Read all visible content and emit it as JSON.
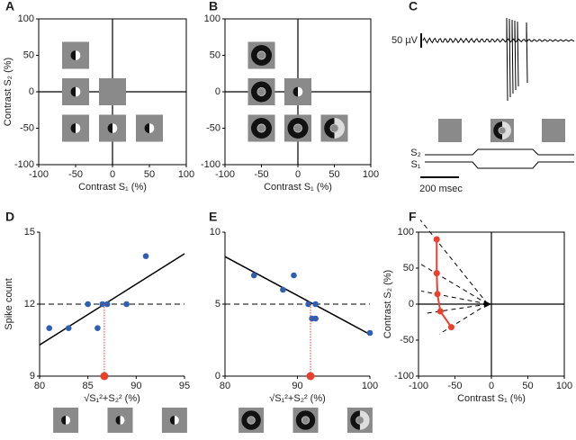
{
  "chart_data": [
    {
      "type": "icon",
      "panel": "A",
      "xlabel": "Contrast S₁ (%)",
      "ylabel": "Contrast S₂ (%)",
      "x": [
        -50,
        -50,
        0,
        -50,
        0,
        50
      ],
      "y": [
        50,
        0,
        0,
        -50,
        -50,
        -50
      ],
      "xlim": [
        -100,
        100
      ],
      "ylim": [
        -100,
        100
      ],
      "xticks": [
        -100,
        -50,
        0,
        50,
        100
      ],
      "yticks": [
        -100,
        -50,
        0,
        50,
        100
      ]
    },
    {
      "type": "icon",
      "panel": "B",
      "xlabel": "Contrast S₁ (%)",
      "x": [
        -50,
        -50,
        0,
        -50,
        0,
        50
      ],
      "y": [
        50,
        0,
        0,
        -50,
        -50,
        -50
      ],
      "xlim": [
        -100,
        100
      ],
      "ylim": [
        -100,
        100
      ],
      "xticks": [
        -100,
        -50,
        0,
        50,
        100
      ],
      "yticks": [
        -100,
        -50,
        0,
        50,
        100
      ]
    },
    {
      "type": "trace",
      "panel": "C",
      "scale": "50 µV",
      "s2": "S₂",
      "s1": "S₁",
      "time": "200 msec"
    },
    {
      "type": "scatter",
      "panel": "D",
      "xlabel": "√S₁²+S₂² (%)",
      "ylabel": "Spike count",
      "x": [
        81,
        83,
        85,
        86,
        86.5,
        87,
        89,
        91
      ],
      "y": [
        11,
        11,
        12,
        11,
        12,
        12,
        12,
        14
      ],
      "color": "#2e5fb3",
      "fit": {
        "x": [
          80,
          95
        ],
        "y": [
          10.3,
          14.1
        ]
      },
      "hline": 12,
      "crossing": 86.7,
      "crossing_color": "#e8412c",
      "xlim": [
        80,
        95
      ],
      "ylim": [
        9,
        15
      ],
      "xticks": [
        80,
        85,
        90,
        95
      ],
      "yticks": [
        9,
        12,
        15
      ]
    },
    {
      "type": "scatter",
      "panel": "E",
      "xlabel": "√S₁²+S₂² (%)",
      "x": [
        84,
        88,
        89.5,
        91.5,
        92,
        92.5,
        92.5,
        100
      ],
      "y": [
        7,
        6,
        7,
        5,
        4,
        5,
        4,
        3
      ],
      "color": "#2e5fb3",
      "fit": {
        "x": [
          80,
          100
        ],
        "y": [
          8.3,
          2.9
        ]
      },
      "hline": 5,
      "crossing": 91.8,
      "crossing_color": "#e8412c",
      "xlim": [
        80,
        100
      ],
      "ylim": [
        0,
        10
      ],
      "xticks": [
        80,
        90,
        100
      ],
      "yticks": [
        0,
        5,
        10
      ]
    },
    {
      "type": "line",
      "panel": "F",
      "xlabel": "Contrast S₁ (%)",
      "ylabel": "Contrast S₂ (%)",
      "x": [
        -75,
        -75,
        -74,
        -70,
        -55
      ],
      "y": [
        90,
        43,
        14,
        -10,
        -32
      ],
      "color": "#e8412c",
      "xlim": [
        -100,
        100
      ],
      "ylim": [
        -100,
        100
      ],
      "xticks": [
        -100,
        -50,
        0,
        50,
        100
      ],
      "yticks": [
        -100,
        -50,
        0,
        50,
        100
      ]
    }
  ]
}
